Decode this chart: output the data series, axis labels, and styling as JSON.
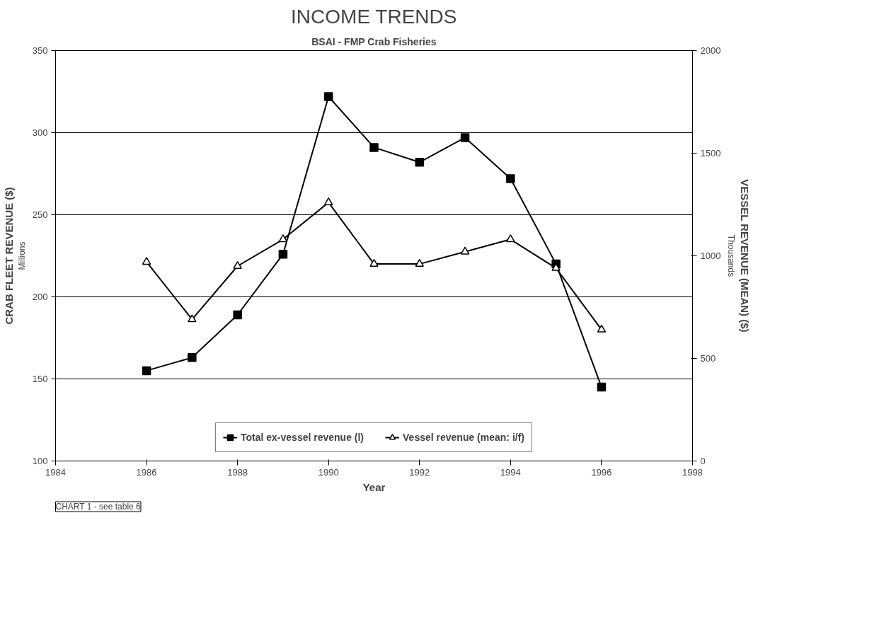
{
  "chart_data": {
    "type": "line",
    "title": "INCOME TRENDS",
    "subtitle": "BSAI - FMP Crab Fisheries",
    "xlabel": "Year",
    "ylabel": "CRAB FLEET REVENUE ($)",
    "y2label": "VESSEL REVENUE (MEAN) ($)",
    "annotations": [
      "Millions",
      "Thousands",
      "CHART 1 - see table 6"
    ],
    "x": [
      1986,
      1987,
      1988,
      1989,
      1990,
      1991,
      1992,
      1993,
      1994,
      1995,
      1996
    ],
    "series": [
      {
        "name": "Total ex-vessel revenue (l)",
        "color": "#000000",
        "marker": "square",
        "values": [
          155,
          163,
          189,
          226,
          322,
          291,
          282,
          297,
          272,
          220,
          145
        ]
      },
      {
        "name": "Vessel revenue (mean: i/f)",
        "color": "#000000",
        "marker": "triangle",
        "axis": "y2",
        "values": [
          970,
          690,
          950,
          1080,
          1260,
          960,
          960,
          1020,
          1080,
          940,
          640
        ]
      }
    ],
    "xlim": [
      1984,
      1998
    ],
    "xticks": [
      1984,
      1986,
      1988,
      1990,
      1992,
      1994,
      1996,
      1998
    ],
    "ylim": [
      100,
      350
    ],
    "yticks": [
      100,
      150,
      200,
      250,
      300,
      350
    ],
    "y2lim": [
      0,
      2000
    ],
    "y2ticks": [
      0,
      500,
      1000,
      1500,
      2000
    ],
    "grid": "y",
    "legend": "bottom",
    "line_style": "solid"
  }
}
